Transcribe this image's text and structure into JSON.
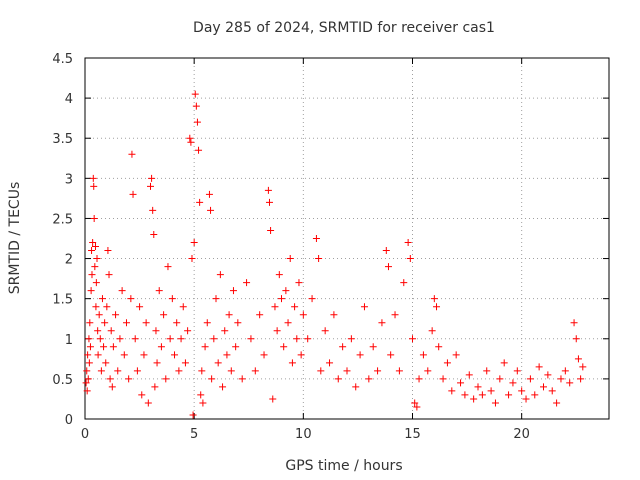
{
  "chart_data": {
    "type": "scatter",
    "title": "Day 285 of 2024, SRMTID for receiver cas1",
    "xlabel": "GPS time / hours",
    "ylabel": "SRMTID / TECUs",
    "xlim": [
      0,
      24
    ],
    "ylim": [
      0,
      4.5
    ],
    "grid": true,
    "marker": "+",
    "marker_color": "#ff0000",
    "x_ticks": [
      0,
      5,
      10,
      15,
      20
    ],
    "y_ticks": [
      0,
      0.5,
      1,
      1.5,
      2,
      2.5,
      3,
      3.5,
      4,
      4.5
    ],
    "x_tick_labels": [
      "0",
      "5",
      "10",
      "15",
      "20"
    ],
    "y_tick_labels": [
      "0",
      "0.5",
      "1",
      "1.5",
      "2",
      "2.5",
      "3",
      "3.5",
      "4",
      "4.5"
    ],
    "series": [
      {
        "name": "cas1",
        "points": [
          [
            0.05,
            0.45
          ],
          [
            0.08,
            0.6
          ],
          [
            0.1,
            0.35
          ],
          [
            0.12,
            0.8
          ],
          [
            0.15,
            0.5
          ],
          [
            0.18,
            1.0
          ],
          [
            0.2,
            0.7
          ],
          [
            0.22,
            1.2
          ],
          [
            0.25,
            0.9
          ],
          [
            0.28,
            1.6
          ],
          [
            0.3,
            2.1
          ],
          [
            0.32,
            1.8
          ],
          [
            0.35,
            2.2
          ],
          [
            0.38,
            3.0
          ],
          [
            0.4,
            2.9
          ],
          [
            0.42,
            2.5
          ],
          [
            0.45,
            1.9
          ],
          [
            0.48,
            2.15
          ],
          [
            0.5,
            1.4
          ],
          [
            0.52,
            1.7
          ],
          [
            0.55,
            2.0
          ],
          [
            0.58,
            1.1
          ],
          [
            0.6,
            0.8
          ],
          [
            0.65,
            1.3
          ],
          [
            0.7,
            1.0
          ],
          [
            0.75,
            0.6
          ],
          [
            0.8,
            1.5
          ],
          [
            0.85,
            0.9
          ],
          [
            0.9,
            1.2
          ],
          [
            0.95,
            0.7
          ],
          [
            1.0,
            1.4
          ],
          [
            1.05,
            2.1
          ],
          [
            1.1,
            1.8
          ],
          [
            1.15,
            0.5
          ],
          [
            1.2,
            1.1
          ],
          [
            1.25,
            0.4
          ],
          [
            1.3,
            0.9
          ],
          [
            1.4,
            1.3
          ],
          [
            1.5,
            0.6
          ],
          [
            1.6,
            1.0
          ],
          [
            1.7,
            1.6
          ],
          [
            1.8,
            0.8
          ],
          [
            1.9,
            1.2
          ],
          [
            2.0,
            0.5
          ],
          [
            2.1,
            1.5
          ],
          [
            2.15,
            3.3
          ],
          [
            2.2,
            2.8
          ],
          [
            2.3,
            1.0
          ],
          [
            2.4,
            0.6
          ],
          [
            2.5,
            1.4
          ],
          [
            2.6,
            0.3
          ],
          [
            2.7,
            0.8
          ],
          [
            2.8,
            1.2
          ],
          [
            2.9,
            0.2
          ],
          [
            3.0,
            2.9
          ],
          [
            3.05,
            3.0
          ],
          [
            3.1,
            2.6
          ],
          [
            3.15,
            2.3
          ],
          [
            3.2,
            0.4
          ],
          [
            3.25,
            1.1
          ],
          [
            3.3,
            0.7
          ],
          [
            3.4,
            1.6
          ],
          [
            3.5,
            0.9
          ],
          [
            3.6,
            1.3
          ],
          [
            3.7,
            0.5
          ],
          [
            3.8,
            1.9
          ],
          [
            3.9,
            1.0
          ],
          [
            4.0,
            1.5
          ],
          [
            4.1,
            0.8
          ],
          [
            4.2,
            1.2
          ],
          [
            4.3,
            0.6
          ],
          [
            4.4,
            1.0
          ],
          [
            4.5,
            1.4
          ],
          [
            4.6,
            0.7
          ],
          [
            4.7,
            1.1
          ],
          [
            4.8,
            3.5
          ],
          [
            4.85,
            3.45
          ],
          [
            4.9,
            2.0
          ],
          [
            4.95,
            0.05
          ],
          [
            5.0,
            2.2
          ],
          [
            5.05,
            4.05
          ],
          [
            5.1,
            3.9
          ],
          [
            5.15,
            3.7
          ],
          [
            5.2,
            3.35
          ],
          [
            5.25,
            2.7
          ],
          [
            5.3,
            0.3
          ],
          [
            5.35,
            0.6
          ],
          [
            5.4,
            0.2
          ],
          [
            5.5,
            0.9
          ],
          [
            5.6,
            1.2
          ],
          [
            5.7,
            2.8
          ],
          [
            5.75,
            2.6
          ],
          [
            5.8,
            0.5
          ],
          [
            5.9,
            1.0
          ],
          [
            6.0,
            1.5
          ],
          [
            6.1,
            0.7
          ],
          [
            6.2,
            1.8
          ],
          [
            6.3,
            0.4
          ],
          [
            6.4,
            1.1
          ],
          [
            6.5,
            0.8
          ],
          [
            6.6,
            1.3
          ],
          [
            6.7,
            0.6
          ],
          [
            6.8,
            1.6
          ],
          [
            6.9,
            0.9
          ],
          [
            7.0,
            1.2
          ],
          [
            7.2,
            0.5
          ],
          [
            7.4,
            1.7
          ],
          [
            7.6,
            1.0
          ],
          [
            7.8,
            0.6
          ],
          [
            8.0,
            1.3
          ],
          [
            8.2,
            0.8
          ],
          [
            8.4,
            2.85
          ],
          [
            8.45,
            2.7
          ],
          [
            8.5,
            2.35
          ],
          [
            8.6,
            0.25
          ],
          [
            8.7,
            1.4
          ],
          [
            8.8,
            1.1
          ],
          [
            8.9,
            1.8
          ],
          [
            9.0,
            1.5
          ],
          [
            9.1,
            0.9
          ],
          [
            9.2,
            1.6
          ],
          [
            9.3,
            1.2
          ],
          [
            9.4,
            2.0
          ],
          [
            9.5,
            0.7
          ],
          [
            9.6,
            1.4
          ],
          [
            9.7,
            1.0
          ],
          [
            9.8,
            1.7
          ],
          [
            9.9,
            0.8
          ],
          [
            10.0,
            1.3
          ],
          [
            10.2,
            1.0
          ],
          [
            10.4,
            1.5
          ],
          [
            10.6,
            2.25
          ],
          [
            10.7,
            2.0
          ],
          [
            10.8,
            0.6
          ],
          [
            11.0,
            1.1
          ],
          [
            11.2,
            0.7
          ],
          [
            11.4,
            1.3
          ],
          [
            11.6,
            0.5
          ],
          [
            11.8,
            0.9
          ],
          [
            12.0,
            0.6
          ],
          [
            12.2,
            1.0
          ],
          [
            12.4,
            0.4
          ],
          [
            12.6,
            0.8
          ],
          [
            12.8,
            1.4
          ],
          [
            13.0,
            0.5
          ],
          [
            13.2,
            0.9
          ],
          [
            13.4,
            0.6
          ],
          [
            13.6,
            1.2
          ],
          [
            13.8,
            2.1
          ],
          [
            13.9,
            1.9
          ],
          [
            14.0,
            0.8
          ],
          [
            14.2,
            1.3
          ],
          [
            14.4,
            0.6
          ],
          [
            14.6,
            1.7
          ],
          [
            14.8,
            2.2
          ],
          [
            14.9,
            2.0
          ],
          [
            15.0,
            1.0
          ],
          [
            15.1,
            0.2
          ],
          [
            15.2,
            0.15
          ],
          [
            15.3,
            0.5
          ],
          [
            15.5,
            0.8
          ],
          [
            15.7,
            0.6
          ],
          [
            15.9,
            1.1
          ],
          [
            16.0,
            1.5
          ],
          [
            16.1,
            1.4
          ],
          [
            16.2,
            0.9
          ],
          [
            16.4,
            0.5
          ],
          [
            16.6,
            0.7
          ],
          [
            16.8,
            0.35
          ],
          [
            17.0,
            0.8
          ],
          [
            17.2,
            0.45
          ],
          [
            17.4,
            0.3
          ],
          [
            17.6,
            0.55
          ],
          [
            17.8,
            0.25
          ],
          [
            18.0,
            0.4
          ],
          [
            18.2,
            0.3
          ],
          [
            18.4,
            0.6
          ],
          [
            18.6,
            0.35
          ],
          [
            18.8,
            0.2
          ],
          [
            19.0,
            0.5
          ],
          [
            19.2,
            0.7
          ],
          [
            19.4,
            0.3
          ],
          [
            19.6,
            0.45
          ],
          [
            19.8,
            0.6
          ],
          [
            20.0,
            0.35
          ],
          [
            20.2,
            0.25
          ],
          [
            20.4,
            0.5
          ],
          [
            20.6,
            0.3
          ],
          [
            20.8,
            0.65
          ],
          [
            21.0,
            0.4
          ],
          [
            21.2,
            0.55
          ],
          [
            21.4,
            0.35
          ],
          [
            21.6,
            0.2
          ],
          [
            21.8,
            0.5
          ],
          [
            22.0,
            0.6
          ],
          [
            22.2,
            0.45
          ],
          [
            22.4,
            1.2
          ],
          [
            22.5,
            1.0
          ],
          [
            22.6,
            0.75
          ],
          [
            22.7,
            0.5
          ],
          [
            22.8,
            0.65
          ]
        ]
      }
    ]
  }
}
